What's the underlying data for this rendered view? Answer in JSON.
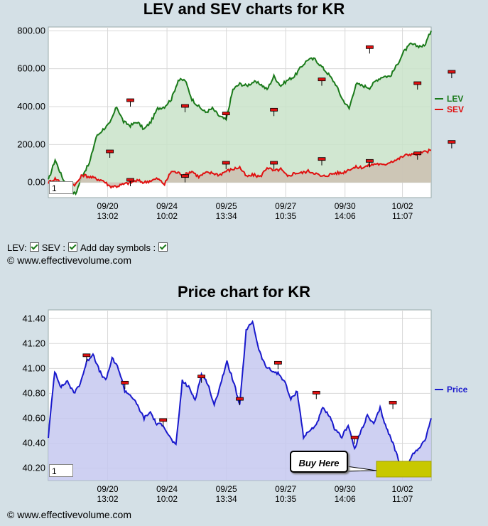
{
  "chart1": {
    "title": "LEV and SEV charts for KR",
    "legend": [
      {
        "name": "LEV",
        "color": "#1a7a1a"
      },
      {
        "name": "SEV",
        "color": "#e01010"
      }
    ],
    "zoom_value": "1"
  },
  "chart2": {
    "title": "Price chart for KR",
    "legend": [
      {
        "name": "Price",
        "color": "#1a1acc"
      }
    ],
    "zoom_value": "1",
    "buy_label": "Buy Here"
  },
  "controls": {
    "lev_label": "LEV:",
    "sev_label": "SEV :",
    "day_symbols_label": "Add day symbols :"
  },
  "copyright": "© www.effectivevolume.com",
  "chart_data": [
    {
      "type": "area",
      "title": "LEV and SEV charts for KR",
      "x_tick_labels": [
        [
          "09/20",
          "13:02"
        ],
        [
          "09/24",
          "10:02"
        ],
        [
          "09/25",
          "13:34"
        ],
        [
          "09/27",
          "10:35"
        ],
        [
          "09/30",
          "14:06"
        ],
        [
          "10/02",
          "11:07"
        ]
      ],
      "y_tick_labels": [
        "0.00",
        "200.00",
        "400.00",
        "600.00",
        "800.00"
      ],
      "ylim": [
        -80,
        820
      ],
      "grid": true,
      "legend_position": "right",
      "series": [
        {
          "name": "LEV",
          "color": "#1a7a1a",
          "fill": "#c9e3c9",
          "values": [
            10,
            120,
            30,
            -40,
            -60,
            40,
            100,
            240,
            280,
            310,
            400,
            320,
            300,
            320,
            280,
            320,
            390,
            400,
            440,
            540,
            540,
            440,
            400,
            370,
            390,
            350,
            330,
            490,
            520,
            510,
            530,
            520,
            490,
            560,
            510,
            540,
            560,
            610,
            650,
            650,
            610,
            570,
            520,
            440,
            390,
            520,
            510,
            500,
            540,
            560,
            560,
            620,
            690,
            730,
            720,
            720,
            800
          ]
        },
        {
          "name": "SEV",
          "color": "#e01010",
          "fill": "#cdbfb2",
          "values": [
            0,
            20,
            0,
            -10,
            -10,
            40,
            30,
            20,
            10,
            -20,
            -20,
            -10,
            0,
            10,
            0,
            10,
            20,
            -10,
            60,
            50,
            40,
            60,
            30,
            50,
            50,
            40,
            60,
            70,
            80,
            30,
            40,
            30,
            80,
            60,
            70,
            30,
            50,
            50,
            60,
            50,
            30,
            40,
            50,
            50,
            70,
            80,
            80,
            90,
            100,
            90,
            110,
            120,
            140,
            150,
            150,
            160,
            170
          ]
        }
      ],
      "day_markers": [
        {
          "series": "LEV",
          "x": 12,
          "y": 430
        },
        {
          "series": "LEV",
          "x": 20,
          "y": 400
        },
        {
          "series": "LEV",
          "x": 26,
          "y": 360
        },
        {
          "series": "LEV",
          "x": 33,
          "y": 380
        },
        {
          "series": "LEV",
          "x": 40,
          "y": 540
        },
        {
          "series": "LEV",
          "x": 47,
          "y": 710
        },
        {
          "series": "LEV",
          "x": 54,
          "y": 520
        },
        {
          "series": "LEV",
          "x": 59,
          "y": 580
        },
        {
          "series": "SEV",
          "x": 9,
          "y": 160
        },
        {
          "series": "SEV",
          "x": 12,
          "y": 10
        },
        {
          "series": "SEV",
          "x": 20,
          "y": 30
        },
        {
          "series": "SEV",
          "x": 26,
          "y": 100
        },
        {
          "series": "SEV",
          "x": 33,
          "y": 100
        },
        {
          "series": "SEV",
          "x": 40,
          "y": 120
        },
        {
          "series": "SEV",
          "x": 47,
          "y": 110
        },
        {
          "series": "SEV",
          "x": 54,
          "y": 150
        },
        {
          "series": "SEV",
          "x": 59,
          "y": 210
        }
      ]
    },
    {
      "type": "area",
      "title": "Price chart for KR",
      "x_tick_labels": [
        [
          "09/20",
          "13:02"
        ],
        [
          "09/24",
          "10:02"
        ],
        [
          "09/25",
          "13:34"
        ],
        [
          "09/27",
          "10:35"
        ],
        [
          "09/30",
          "14:06"
        ],
        [
          "10/02",
          "11:07"
        ]
      ],
      "y_tick_labels": [
        "40.20",
        "40.40",
        "40.60",
        "40.80",
        "41.00",
        "41.20",
        "41.40"
      ],
      "ylim": [
        40.1,
        41.47
      ],
      "grid": true,
      "legend_position": "right",
      "series": [
        {
          "name": "Price",
          "color": "#1a1acc",
          "fill": "#c6c8f0",
          "values": [
            40.45,
            40.98,
            40.85,
            40.9,
            40.8,
            40.88,
            41.05,
            41.12,
            40.98,
            40.9,
            41.08,
            41.0,
            40.82,
            40.78,
            40.7,
            40.6,
            40.65,
            40.55,
            40.55,
            40.45,
            40.38,
            40.9,
            40.85,
            40.75,
            40.95,
            40.88,
            40.7,
            40.88,
            41.05,
            40.9,
            40.7,
            41.3,
            41.38,
            41.15,
            41.02,
            40.98,
            40.96,
            40.9,
            40.75,
            40.82,
            40.45,
            40.5,
            40.55,
            40.68,
            40.62,
            40.5,
            40.45,
            40.55,
            40.35,
            40.5,
            40.62,
            40.55,
            40.68,
            40.52,
            40.4,
            40.25,
            40.2,
            40.3,
            40.36,
            40.42,
            40.6
          ]
        }
      ],
      "day_markers": [
        {
          "x": 6,
          "y": 41.1
        },
        {
          "x": 12,
          "y": 40.88
        },
        {
          "x": 18,
          "y": 40.58
        },
        {
          "x": 24,
          "y": 40.93
        },
        {
          "x": 30,
          "y": 40.75
        },
        {
          "x": 36,
          "y": 41.04
        },
        {
          "x": 42,
          "y": 40.8
        },
        {
          "x": 48,
          "y": 40.44
        },
        {
          "x": 54,
          "y": 40.72
        }
      ],
      "annotations": [
        "Buy Here"
      ]
    }
  ]
}
